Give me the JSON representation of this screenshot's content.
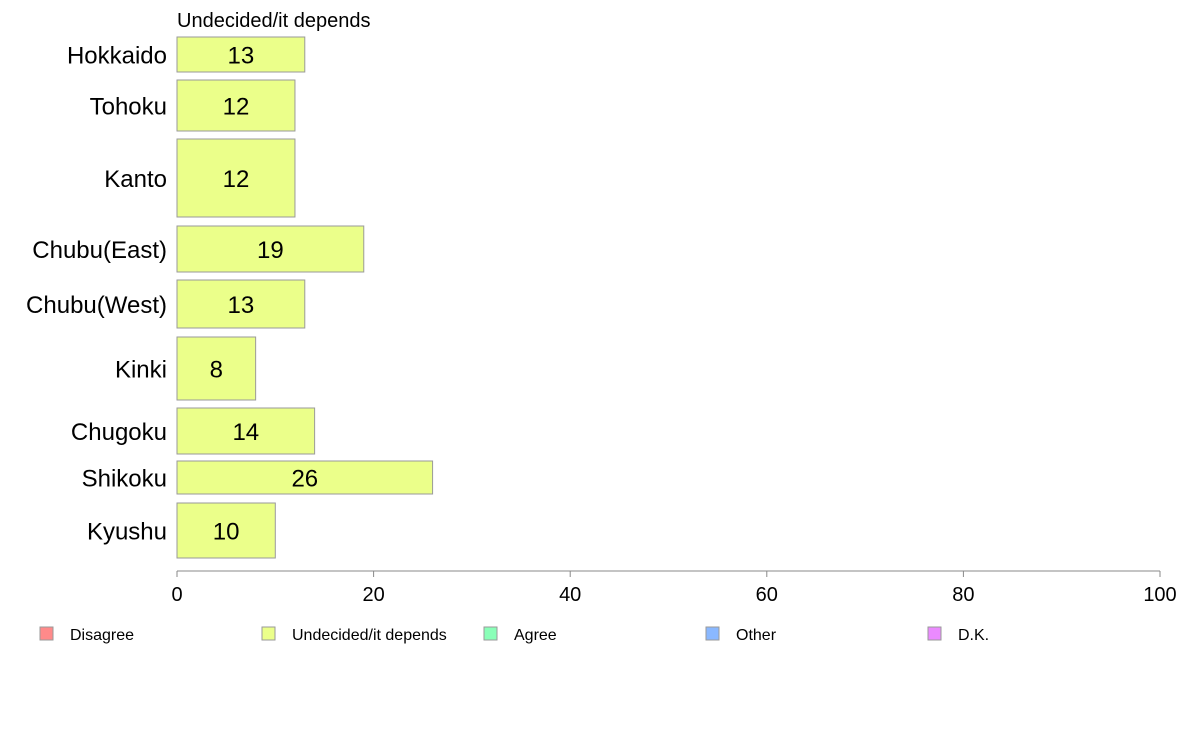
{
  "chart_data": {
    "type": "bar",
    "orientation": "horizontal",
    "title": "Undecided/it depends",
    "categories": [
      "Hokkaido",
      "Tohoku",
      "Kanto",
      "Chubu(East)",
      "Chubu(West)",
      "Kinki",
      "Chugoku",
      "Shikoku",
      "Kyushu"
    ],
    "series": [
      {
        "name": "Undecided/it depends",
        "values": [
          13,
          12,
          12,
          19,
          13,
          8,
          14,
          26,
          10
        ],
        "color": "#EBFF8A"
      }
    ],
    "xlim": [
      0,
      100
    ],
    "xticks": [
      0,
      20,
      40,
      60,
      80,
      100
    ],
    "grid": false,
    "legend": {
      "position": "bottom",
      "items": [
        {
          "label": "Disagree",
          "color": "#FF8A8A"
        },
        {
          "label": "Undecided/it depends",
          "color": "#EBFF8A"
        },
        {
          "label": "Agree",
          "color": "#8AFFB8"
        },
        {
          "label": "Other",
          "color": "#8AB8FF"
        },
        {
          "label": "D.K.",
          "color": "#EB8AFF"
        }
      ]
    }
  }
}
